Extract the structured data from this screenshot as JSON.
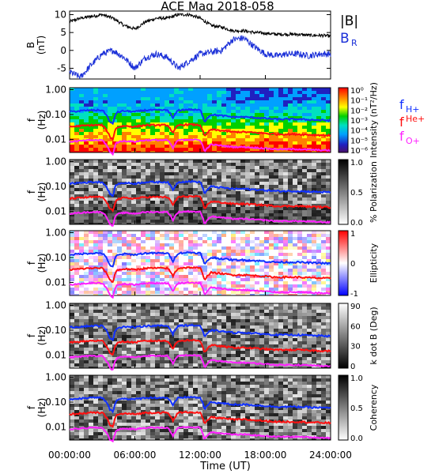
{
  "title": "ACE Mag 2018-058",
  "xaxis": {
    "label": "Time (UT)",
    "ticks": [
      "00:00:00",
      "06:00:00",
      "12:00:00",
      "18:00:00",
      "24:00:00"
    ]
  },
  "colors": {
    "H": "#1030ff",
    "He": "#ff1010",
    "O": "#ff20ff",
    "B": "#000000",
    "BR": "#1a2fd8"
  },
  "chart_data": [
    {
      "type": "line",
      "panel": "magnetic-field",
      "ylabel": "B (nT)",
      "ylim": [
        -8,
        11
      ],
      "yticks": [
        "10",
        "5",
        "0",
        "-5"
      ],
      "x": [
        0,
        1,
        2,
        3,
        4,
        5,
        6,
        7,
        8,
        9,
        10,
        11,
        12,
        13,
        14,
        15,
        16,
        17,
        18,
        19,
        20,
        21,
        22,
        23,
        24
      ],
      "series": [
        {
          "name": "|B|",
          "values": [
            8,
            9,
            9.5,
            10,
            9,
            7,
            6,
            8,
            9,
            9,
            10,
            10,
            9,
            7,
            6.5,
            5.5,
            5.5,
            5,
            4.8,
            4.5,
            4.5,
            4.5,
            4.2,
            4.2,
            4
          ]
        },
        {
          "name": "B_R",
          "values": [
            -6,
            -7.5,
            -4,
            -1,
            0,
            -2,
            -5,
            -2,
            -1,
            -2,
            -5,
            -3,
            -1,
            -0.5,
            0,
            3,
            3.5,
            1,
            -1,
            -1.5,
            -1,
            -1,
            -1.5,
            -1,
            -1
          ]
        }
      ]
    },
    {
      "type": "heatmap",
      "panel": "intensity",
      "ylabel": "f (Hz)",
      "yticks": [
        "1.00",
        "0.10",
        "0.01"
      ],
      "colorbar": {
        "label": "Intensity (nT²/Hz)",
        "ticks": [
          "10⁰",
          "10⁻¹",
          "10⁻²",
          "10⁻³",
          "10⁻⁴",
          "10⁻⁵",
          "10⁻⁶"
        ]
      },
      "overlays": [
        "f_H+",
        "f_He+",
        "f_O+"
      ]
    },
    {
      "type": "heatmap",
      "panel": "polarization",
      "ylabel": "f (Hz)",
      "yticks": [
        "1.00",
        "0.10",
        "0.01"
      ],
      "colorbar": {
        "label": "% Polarization",
        "ticks": [
          "1.0",
          "0.5",
          "0.0"
        ]
      }
    },
    {
      "type": "heatmap",
      "panel": "ellipticity",
      "ylabel": "f (Hz)",
      "yticks": [
        "1.00",
        "0.10",
        "0.01"
      ],
      "colorbar": {
        "label": "Ellipticity",
        "ticks": [
          "1",
          "0",
          "-1"
        ]
      }
    },
    {
      "type": "heatmap",
      "panel": "k-dot-b",
      "ylabel": "f (Hz)",
      "yticks": [
        "1.00",
        "0.10",
        "0.01"
      ],
      "colorbar": {
        "label": "k dot B (Deg)",
        "ticks": [
          "90",
          "60",
          "30",
          "0"
        ]
      }
    },
    {
      "type": "heatmap",
      "panel": "coherency",
      "ylabel": "f (Hz)",
      "yticks": [
        "1.00",
        "0.10",
        "0.01"
      ],
      "colorbar": {
        "label": "Coherency",
        "ticks": [
          "1.0",
          "0.5",
          "0.0"
        ]
      }
    }
  ],
  "gyro": {
    "x": [
      0,
      1,
      2,
      3,
      3.7,
      4,
      4.3,
      5,
      6,
      7,
      8,
      9,
      9.5,
      10,
      11,
      12,
      12.4,
      13,
      14,
      15,
      16,
      17,
      18,
      19,
      20,
      21,
      22,
      23,
      24
    ],
    "fH": [
      0.13,
      0.14,
      0.15,
      0.15,
      0.05,
      0.04,
      0.12,
      0.14,
      0.13,
      0.15,
      0.15,
      0.15,
      0.07,
      0.15,
      0.16,
      0.15,
      0.05,
      0.1,
      0.09,
      0.08,
      0.08,
      0.075,
      0.07,
      0.065,
      0.065,
      0.065,
      0.062,
      0.06,
      0.058
    ]
  },
  "legend": {
    "B": "|B|",
    "BR": "B",
    "BR_sub": "R",
    "fH": "f",
    "fH_sup": "H+",
    "fHe": "f",
    "fHe_sup": "He+",
    "fO": "f",
    "fO_sub": "O+"
  },
  "labels": {
    "b_axis": "B",
    "b_unit": "(nT)",
    "f_axis": "f",
    "f_unit": "(Hz)"
  }
}
